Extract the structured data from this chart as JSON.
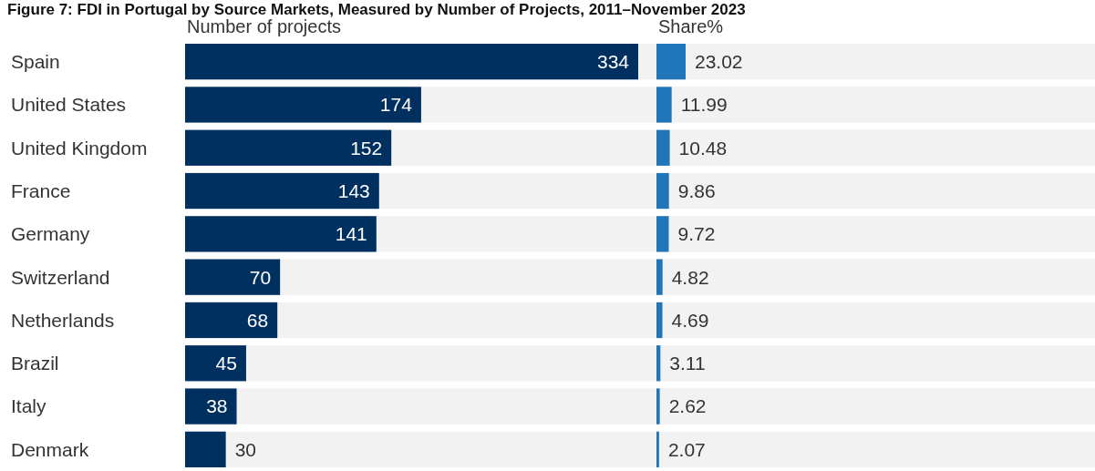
{
  "chart_data": [
    {
      "type": "bar",
      "orientation": "horizontal",
      "title": "Figure 7: FDI in Portugal by Source Markets, Measured by Number of Projects, 2011–November 2023",
      "xlabel": "Number of projects",
      "categories": [
        "Spain",
        "United States",
        "United Kingdom",
        "France",
        "Germany",
        "Switzerland",
        "Netherlands",
        "Brazil",
        "Italy",
        "Denmark"
      ],
      "values": [
        334,
        174,
        152,
        143,
        141,
        70,
        68,
        45,
        38,
        30
      ],
      "color": "#00305f",
      "xlim": [
        0,
        334
      ],
      "data_labels": true
    },
    {
      "type": "bar",
      "orientation": "horizontal",
      "xlabel": "Share%",
      "categories": [
        null,
        null,
        null,
        null,
        null,
        null,
        null,
        null,
        null,
        null
      ],
      "values": [
        23.02,
        11.99,
        10.48,
        9.86,
        9.72,
        4.82,
        4.69,
        3.11,
        2.62,
        2.07
      ],
      "color": "#2176b9",
      "xlim": [
        0,
        346
      ],
      "data_labels": true
    }
  ]
}
